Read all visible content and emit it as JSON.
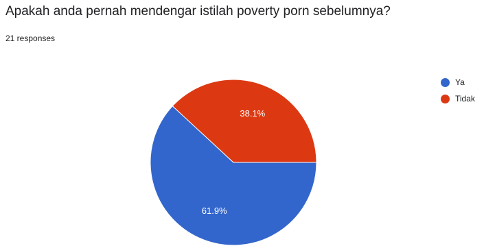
{
  "form": {
    "question": "Apakah anda pernah mendengar istilah poverty porn sebelumnya?",
    "responses": "21 responses"
  },
  "chart_data": {
    "type": "pie",
    "title": "Apakah anda pernah mendengar istilah poverty porn sebelumnya?",
    "subtitle": "21 responses",
    "legend_position": "right",
    "slices": [
      {
        "label": "Ya",
        "percent": 61.9,
        "display": "61.9%",
        "color": "#3366cc"
      },
      {
        "label": "Tidak",
        "percent": 38.1,
        "display": "38.1%",
        "color": "#dc3912"
      }
    ]
  }
}
